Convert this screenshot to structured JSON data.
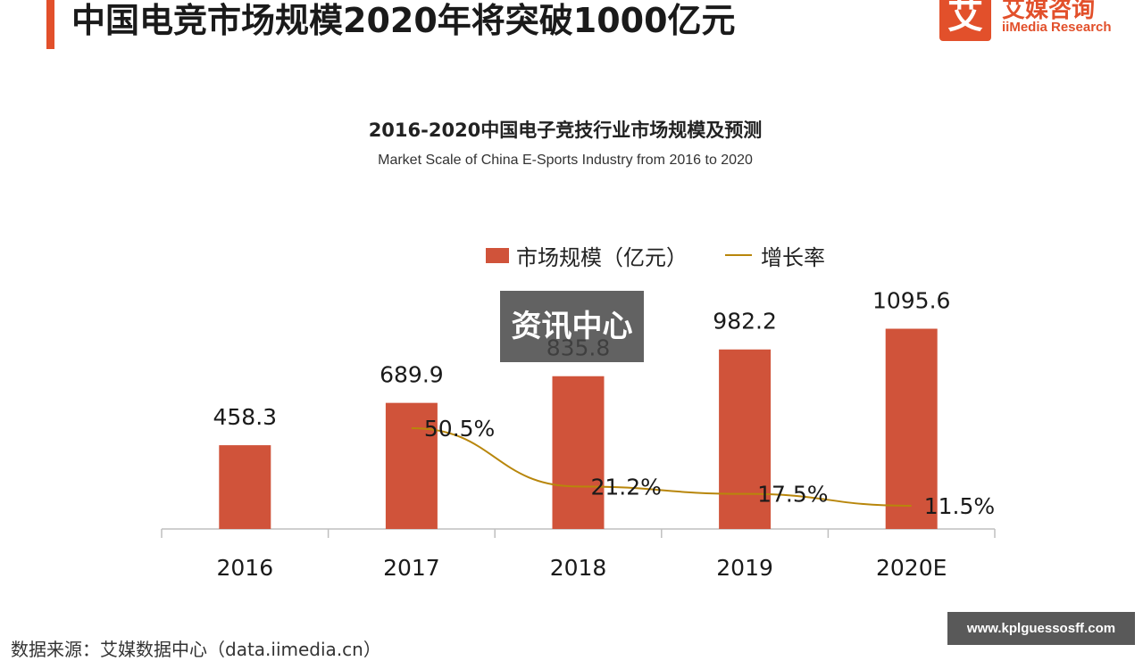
{
  "header": {
    "title": "中国电竞市场规模2020年将突破1000亿元",
    "accent_color": "#e2502b"
  },
  "logo": {
    "mark_glyph": "艾",
    "name_cn": "艾媒咨询",
    "name_en": "iiMedia Research",
    "icon": "iimedia-logo-icon"
  },
  "overlay": {
    "label": "资讯中心"
  },
  "source": {
    "text": "数据来源：艾媒数据中心（data.iimedia.cn）"
  },
  "watermark": {
    "text": "www.kplguessosff.com"
  },
  "chart_data": {
    "type": "bar",
    "title": "2016-2020中国电子竞技行业市场规模及预测",
    "subtitle": "Market Scale of China E-Sports Industry from 2016 to 2020",
    "categories": [
      "2016",
      "2017",
      "2018",
      "2019",
      "2020E"
    ],
    "series": [
      {
        "name": "市场规模（亿元）",
        "type": "bar",
        "color": "#d0533a",
        "values": [
          458.3,
          689.9,
          835.8,
          982.2,
          1095.6
        ],
        "labels": [
          "458.3",
          "689.9",
          "835.8",
          "982.2",
          "1095.6"
        ]
      },
      {
        "name": "增长率",
        "type": "line",
        "color": "#b8860b",
        "values": [
          null,
          50.5,
          21.2,
          17.5,
          11.5
        ],
        "labels": [
          "",
          "50.5%",
          "21.2%",
          "17.5%",
          "11.5%"
        ],
        "unit": "%"
      }
    ],
    "ylim_bar": [
      0,
      1100
    ],
    "ylim_line": [
      0,
      55
    ],
    "grid": false,
    "legend_position": "top-center"
  }
}
